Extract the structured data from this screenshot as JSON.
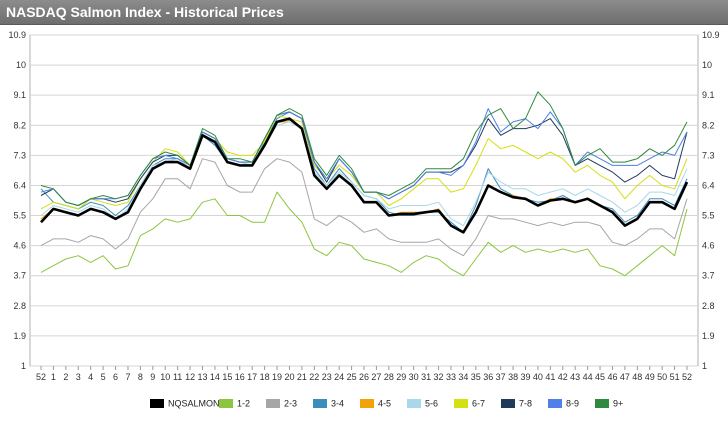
{
  "title": "NASDAQ Salmon Index - Historical Prices",
  "chart_data": {
    "type": "line",
    "title": "NASDAQ Salmon Index - Historical Prices",
    "x": [
      "52",
      "1",
      "2",
      "3",
      "4",
      "5",
      "6",
      "7",
      "8",
      "9",
      "10",
      "11",
      "12",
      "13",
      "14",
      "15",
      "16",
      "17",
      "18",
      "19",
      "20",
      "21",
      "22",
      "23",
      "24",
      "25",
      "26",
      "27",
      "28",
      "29",
      "30",
      "31",
      "32",
      "33",
      "34",
      "35",
      "36",
      "37",
      "38",
      "39",
      "40",
      "41",
      "42",
      "43",
      "44",
      "45",
      "46",
      "47",
      "48",
      "49",
      "50",
      "51",
      "52"
    ],
    "yticks": [
      "1",
      "1.9",
      "2.8",
      "3.7",
      "4.6",
      "5.5",
      "6.4",
      "7.3",
      "8.2",
      "9.1",
      "10",
      "10.9"
    ],
    "ylim": [
      1,
      10.9
    ],
    "grid": true,
    "legend_position": "bottom",
    "series": [
      {
        "name": "NQSALMON",
        "color": "#000000",
        "width": 2.6,
        "values": [
          5.3,
          5.7,
          5.6,
          5.5,
          5.7,
          5.6,
          5.4,
          5.6,
          6.3,
          6.9,
          7.1,
          7.1,
          6.9,
          7.9,
          7.7,
          7.1,
          7.0,
          7.0,
          7.6,
          8.3,
          8.4,
          8.1,
          6.7,
          6.3,
          6.7,
          6.4,
          5.9,
          5.9,
          5.5,
          5.55,
          5.55,
          5.6,
          5.65,
          5.2,
          5.0,
          5.6,
          6.4,
          6.2,
          6.05,
          6.0,
          5.8,
          5.95,
          6.0,
          5.9,
          6.0,
          5.8,
          5.6,
          5.2,
          5.4,
          5.9,
          5.9,
          5.7,
          6.5
        ]
      },
      {
        "name": "1-2",
        "color": "#8cc63f",
        "width": 1,
        "values": [
          3.8,
          4.0,
          4.2,
          4.3,
          4.1,
          4.3,
          3.9,
          4.0,
          4.9,
          5.1,
          5.4,
          5.3,
          5.4,
          5.9,
          6.0,
          5.5,
          5.5,
          5.3,
          5.3,
          6.2,
          5.7,
          5.3,
          4.5,
          4.3,
          4.7,
          4.6,
          4.2,
          4.1,
          4.0,
          3.8,
          4.1,
          4.3,
          4.2,
          3.9,
          3.7,
          4.2,
          4.7,
          4.4,
          4.6,
          4.4,
          4.5,
          4.4,
          4.5,
          4.4,
          4.5,
          4.0,
          3.9,
          3.7,
          4.0,
          4.3,
          4.6,
          4.3,
          5.7
        ]
      },
      {
        "name": "2-3",
        "color": "#a6a6a6",
        "width": 1,
        "values": [
          4.6,
          4.8,
          4.8,
          4.7,
          4.9,
          4.8,
          4.5,
          4.8,
          5.6,
          6.0,
          6.6,
          6.6,
          6.3,
          7.2,
          7.1,
          6.4,
          6.2,
          6.2,
          6.9,
          7.2,
          7.1,
          6.8,
          5.4,
          5.2,
          5.5,
          5.3,
          5.0,
          5.1,
          4.8,
          4.7,
          4.7,
          4.7,
          4.8,
          4.5,
          4.3,
          4.8,
          5.5,
          5.4,
          5.4,
          5.3,
          5.2,
          5.3,
          5.2,
          5.3,
          5.3,
          5.2,
          4.7,
          4.6,
          4.8,
          5.1,
          5.1,
          4.8,
          6.0
        ]
      },
      {
        "name": "3-4",
        "color": "#3c8dbc",
        "width": 1,
        "values": [
          6.3,
          5.9,
          5.8,
          5.7,
          5.9,
          5.8,
          5.5,
          5.8,
          6.4,
          7.0,
          7.2,
          7.2,
          6.9,
          7.9,
          7.6,
          7.1,
          7.0,
          7.0,
          7.7,
          8.4,
          8.6,
          8.4,
          6.9,
          6.4,
          6.9,
          6.5,
          6.1,
          6.0,
          5.6,
          5.5,
          5.5,
          5.6,
          5.6,
          5.3,
          5.0,
          5.8,
          6.9,
          6.3,
          6.1,
          6.0,
          5.9,
          5.95,
          6.1,
          5.9,
          6.0,
          5.8,
          5.7,
          5.3,
          5.5,
          6.0,
          6.0,
          5.8,
          6.6
        ]
      },
      {
        "name": "4-5",
        "color": "#f0a30a",
        "width": 1,
        "values": [
          5.4,
          5.7,
          5.6,
          5.5,
          5.7,
          5.6,
          5.4,
          5.6,
          6.3,
          6.9,
          7.1,
          7.1,
          6.9,
          7.9,
          7.7,
          7.1,
          7.0,
          7.0,
          7.6,
          8.3,
          8.3,
          8.1,
          6.7,
          6.3,
          6.7,
          6.4,
          5.9,
          5.9,
          5.5,
          5.6,
          5.6,
          5.6,
          5.7,
          5.2,
          5.0,
          5.6,
          6.4,
          6.2,
          6.1,
          6.0,
          5.8,
          6.0,
          6.0,
          5.9,
          6.0,
          5.8,
          5.6,
          5.2,
          5.4,
          5.9,
          5.9,
          5.7,
          6.5
        ]
      },
      {
        "name": "5-6",
        "color": "#a9d8ea",
        "width": 1,
        "values": [
          5.5,
          5.8,
          5.7,
          5.6,
          5.8,
          5.7,
          5.4,
          5.7,
          6.4,
          7.0,
          7.1,
          7.2,
          6.9,
          7.9,
          7.7,
          7.2,
          7.1,
          7.0,
          7.6,
          8.2,
          8.3,
          8.1,
          6.8,
          6.4,
          6.8,
          6.5,
          6.1,
          6.0,
          5.7,
          5.8,
          5.8,
          5.8,
          5.9,
          5.4,
          5.2,
          5.9,
          6.8,
          6.5,
          6.3,
          6.3,
          6.1,
          6.2,
          6.3,
          6.1,
          6.3,
          6.1,
          5.9,
          5.6,
          5.8,
          6.2,
          6.2,
          6.1,
          6.9
        ]
      },
      {
        "name": "6-7",
        "color": "#d4e011",
        "width": 1,
        "values": [
          5.7,
          5.9,
          5.8,
          5.7,
          6.0,
          5.9,
          5.8,
          5.9,
          6.6,
          7.1,
          7.5,
          7.4,
          7.0,
          8.0,
          7.8,
          7.4,
          7.3,
          7.3,
          7.7,
          8.5,
          8.4,
          8.3,
          7.0,
          6.6,
          7.0,
          6.7,
          6.2,
          6.2,
          5.8,
          6.0,
          6.3,
          6.6,
          6.6,
          6.2,
          6.3,
          7.0,
          7.8,
          7.5,
          7.6,
          7.4,
          7.2,
          7.4,
          7.2,
          6.8,
          7.0,
          6.7,
          6.5,
          6.0,
          6.4,
          6.7,
          6.4,
          6.3,
          7.2
        ]
      },
      {
        "name": "7-8",
        "color": "#1f3b5a",
        "width": 1,
        "values": [
          6.1,
          6.3,
          5.9,
          5.8,
          6.0,
          6.0,
          5.9,
          6.0,
          6.6,
          7.1,
          7.3,
          7.3,
          7.0,
          8.0,
          7.8,
          7.2,
          7.1,
          7.1,
          7.8,
          8.5,
          8.6,
          8.4,
          7.1,
          6.5,
          7.2,
          6.8,
          6.2,
          6.2,
          6.0,
          6.2,
          6.4,
          6.8,
          6.8,
          6.8,
          7.0,
          7.6,
          8.4,
          7.9,
          8.1,
          8.1,
          8.2,
          8.4,
          7.9,
          7.0,
          7.2,
          7.0,
          6.8,
          6.5,
          6.7,
          7.0,
          6.7,
          6.6,
          8.0
        ]
      },
      {
        "name": "8-9",
        "color": "#4f7fe8",
        "width": 1,
        "values": [
          6.2,
          6.3,
          5.9,
          5.8,
          6.0,
          6.0,
          6.0,
          6.1,
          6.7,
          7.2,
          7.3,
          7.2,
          7.0,
          8.0,
          7.8,
          7.2,
          7.1,
          7.1,
          7.8,
          8.5,
          8.6,
          8.4,
          7.1,
          6.6,
          7.2,
          6.8,
          6.2,
          6.2,
          6.0,
          6.2,
          6.4,
          6.8,
          6.8,
          6.7,
          7.0,
          7.7,
          8.7,
          8.0,
          8.3,
          8.4,
          8.1,
          8.6,
          8.1,
          7.0,
          7.4,
          7.2,
          7.0,
          7.0,
          7.0,
          7.2,
          7.4,
          7.3,
          8.0
        ]
      },
      {
        "name": "9+",
        "color": "#2f8a3e",
        "width": 1,
        "values": [
          6.4,
          6.3,
          5.9,
          5.8,
          6.0,
          6.1,
          6.0,
          6.1,
          6.7,
          7.2,
          7.4,
          7.3,
          7.0,
          8.1,
          7.9,
          7.2,
          7.2,
          7.1,
          7.8,
          8.5,
          8.7,
          8.5,
          7.2,
          6.7,
          7.3,
          6.9,
          6.2,
          6.2,
          6.1,
          6.3,
          6.5,
          6.9,
          6.9,
          6.9,
          7.2,
          8.0,
          8.5,
          8.7,
          8.1,
          8.4,
          9.2,
          8.8,
          8.1,
          7.0,
          7.3,
          7.5,
          7.1,
          7.1,
          7.2,
          7.5,
          7.3,
          7.6,
          8.3
        ]
      }
    ]
  }
}
